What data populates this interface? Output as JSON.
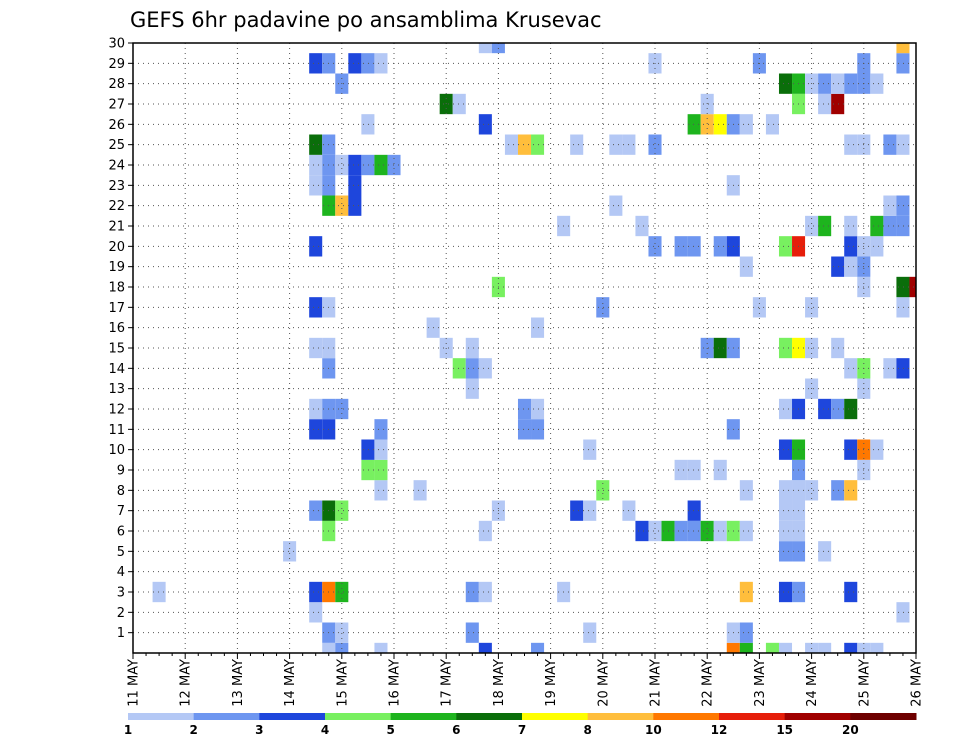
{
  "chart_data": {
    "type": "heatmap",
    "title": "GEFS 6hr padavine po ansamblima Krusevac",
    "x_categories": [
      "11 MAY",
      "12 MAY",
      "13 MAY",
      "14 MAY",
      "15 MAY",
      "16 MAY",
      "17 MAY",
      "18 MAY",
      "19 MAY",
      "20 MAY",
      "21 MAY",
      "22 MAY",
      "23 MAY",
      "24 MAY",
      "25 MAY",
      "26 MAY"
    ],
    "x_unit": "6-hour steps from 11 MAY 00Z",
    "xlim": [
      0,
      60
    ],
    "y_tick_labels": [
      "1",
      "2",
      "3",
      "4",
      "5",
      "6",
      "7",
      "8",
      "9",
      "10",
      "11",
      "12",
      "13",
      "14",
      "15",
      "16",
      "17",
      "18",
      "19",
      "20",
      "21",
      "22",
      "23",
      "24",
      "25",
      "26",
      "27",
      "28",
      "29",
      "30"
    ],
    "ylim": [
      0,
      30
    ],
    "grid": true,
    "legend": "colorbar-bottom",
    "colorbar": {
      "tick_labels": [
        "1",
        "2",
        "3",
        "4",
        "5",
        "6",
        "7",
        "8",
        "10",
        "12",
        "15",
        "20"
      ],
      "bins": [
        {
          "from": 1,
          "to": 2,
          "color": "#b4c8f5"
        },
        {
          "from": 2,
          "to": 3,
          "color": "#6e96f0"
        },
        {
          "from": 3,
          "to": 4,
          "color": "#1e46dc"
        },
        {
          "from": 4,
          "to": 5,
          "color": "#78f060"
        },
        {
          "from": 5,
          "to": 6,
          "color": "#1eb41e"
        },
        {
          "from": 6,
          "to": 7,
          "color": "#0a6e0a"
        },
        {
          "from": 7,
          "to": 8,
          "color": "#ffff00"
        },
        {
          "from": 8,
          "to": 10,
          "color": "#ffbe3c"
        },
        {
          "from": 10,
          "to": 12,
          "color": "#ff7800"
        },
        {
          "from": 12,
          "to": 15,
          "color": "#e61e0a"
        },
        {
          "from": 15,
          "to": 20,
          "color": "#a00000"
        },
        {
          "from": 20,
          "to": null,
          "color": "#6e0000"
        }
      ]
    },
    "cells": [
      {
        "x": 27,
        "y": 0,
        "v": 3
      },
      {
        "x": 31,
        "y": 0,
        "v": 2
      },
      {
        "x": 46,
        "y": 0,
        "v": 10
      },
      {
        "x": 47,
        "y": 0,
        "v": 5
      },
      {
        "x": 49,
        "y": 0,
        "v": 4
      },
      {
        "x": 50,
        "y": 0,
        "v": 1
      },
      {
        "x": 52,
        "y": 0,
        "v": 1
      },
      {
        "x": 53,
        "y": 0,
        "v": 1
      },
      {
        "x": 55,
        "y": 0,
        "v": 3
      },
      {
        "x": 56,
        "y": 0,
        "v": 1
      },
      {
        "x": 57,
        "y": 0,
        "v": 1
      },
      {
        "x": 15,
        "y": 0,
        "v": 1
      },
      {
        "x": 16,
        "y": 0,
        "v": 2
      },
      {
        "x": 19,
        "y": 0,
        "v": 1
      },
      {
        "x": 15,
        "y": 1,
        "v": 2
      },
      {
        "x": 16,
        "y": 1,
        "v": 1
      },
      {
        "x": 26,
        "y": 1,
        "v": 2
      },
      {
        "x": 35,
        "y": 1,
        "v": 1
      },
      {
        "x": 46,
        "y": 1,
        "v": 1
      },
      {
        "x": 47,
        "y": 1,
        "v": 2
      },
      {
        "x": 14,
        "y": 2,
        "v": 1
      },
      {
        "x": 59,
        "y": 2,
        "v": 1
      },
      {
        "x": 2,
        "y": 3,
        "v": 1
      },
      {
        "x": 14,
        "y": 3,
        "v": 3
      },
      {
        "x": 15,
        "y": 3,
        "v": 10
      },
      {
        "x": 16,
        "y": 3,
        "v": 5
      },
      {
        "x": 26,
        "y": 3,
        "v": 2
      },
      {
        "x": 27,
        "y": 3,
        "v": 1
      },
      {
        "x": 33,
        "y": 3,
        "v": 1
      },
      {
        "x": 47,
        "y": 3,
        "v": 8
      },
      {
        "x": 50,
        "y": 3,
        "v": 3
      },
      {
        "x": 51,
        "y": 3,
        "v": 2
      },
      {
        "x": 55,
        "y": 3,
        "v": 3
      },
      {
        "x": 12,
        "y": 5,
        "v": 1
      },
      {
        "x": 50,
        "y": 5,
        "v": 2
      },
      {
        "x": 51,
        "y": 5,
        "v": 2
      },
      {
        "x": 53,
        "y": 5,
        "v": 1
      },
      {
        "x": 15,
        "y": 6,
        "v": 4
      },
      {
        "x": 27,
        "y": 6,
        "v": 1
      },
      {
        "x": 39,
        "y": 6,
        "v": 3
      },
      {
        "x": 40,
        "y": 6,
        "v": 1
      },
      {
        "x": 41,
        "y": 6,
        "v": 5
      },
      {
        "x": 42,
        "y": 6,
        "v": 2
      },
      {
        "x": 43,
        "y": 6,
        "v": 2
      },
      {
        "x": 44,
        "y": 6,
        "v": 5
      },
      {
        "x": 45,
        "y": 6,
        "v": 1
      },
      {
        "x": 46,
        "y": 6,
        "v": 4
      },
      {
        "x": 47,
        "y": 6,
        "v": 1
      },
      {
        "x": 50,
        "y": 6,
        "v": 1
      },
      {
        "x": 51,
        "y": 6,
        "v": 1
      },
      {
        "x": 14,
        "y": 7,
        "v": 2
      },
      {
        "x": 15,
        "y": 7,
        "v": 6
      },
      {
        "x": 16,
        "y": 7,
        "v": 4
      },
      {
        "x": 28,
        "y": 7,
        "v": 1
      },
      {
        "x": 34,
        "y": 7,
        "v": 3
      },
      {
        "x": 35,
        "y": 7,
        "v": 1
      },
      {
        "x": 38,
        "y": 7,
        "v": 1
      },
      {
        "x": 43,
        "y": 7,
        "v": 3
      },
      {
        "x": 50,
        "y": 7,
        "v": 1
      },
      {
        "x": 51,
        "y": 7,
        "v": 1
      },
      {
        "x": 19,
        "y": 8,
        "v": 1
      },
      {
        "x": 22,
        "y": 8,
        "v": 1
      },
      {
        "x": 36,
        "y": 8,
        "v": 4
      },
      {
        "x": 47,
        "y": 8,
        "v": 1
      },
      {
        "x": 50,
        "y": 8,
        "v": 1
      },
      {
        "x": 51,
        "y": 8,
        "v": 1
      },
      {
        "x": 52,
        "y": 8,
        "v": 1
      },
      {
        "x": 54,
        "y": 8,
        "v": 2
      },
      {
        "x": 55,
        "y": 8,
        "v": 8
      },
      {
        "x": 18,
        "y": 9,
        "v": 4
      },
      {
        "x": 19,
        "y": 9,
        "v": 4
      },
      {
        "x": 42,
        "y": 9,
        "v": 1
      },
      {
        "x": 43,
        "y": 9,
        "v": 1
      },
      {
        "x": 45,
        "y": 9,
        "v": 1
      },
      {
        "x": 51,
        "y": 9,
        "v": 2
      },
      {
        "x": 56,
        "y": 9,
        "v": 1
      },
      {
        "x": 18,
        "y": 10,
        "v": 3
      },
      {
        "x": 19,
        "y": 10,
        "v": 1
      },
      {
        "x": 35,
        "y": 10,
        "v": 1
      },
      {
        "x": 50,
        "y": 10,
        "v": 3
      },
      {
        "x": 51,
        "y": 10,
        "v": 5
      },
      {
        "x": 55,
        "y": 10,
        "v": 3
      },
      {
        "x": 56,
        "y": 10,
        "v": 10
      },
      {
        "x": 57,
        "y": 10,
        "v": 1
      },
      {
        "x": 14,
        "y": 11,
        "v": 3
      },
      {
        "x": 15,
        "y": 11,
        "v": 3
      },
      {
        "x": 19,
        "y": 11,
        "v": 2
      },
      {
        "x": 30,
        "y": 11,
        "v": 2
      },
      {
        "x": 31,
        "y": 11,
        "v": 2
      },
      {
        "x": 46,
        "y": 11,
        "v": 2
      },
      {
        "x": 14,
        "y": 12,
        "v": 1
      },
      {
        "x": 15,
        "y": 12,
        "v": 2
      },
      {
        "x": 16,
        "y": 12,
        "v": 2
      },
      {
        "x": 30,
        "y": 12,
        "v": 2
      },
      {
        "x": 31,
        "y": 12,
        "v": 1
      },
      {
        "x": 50,
        "y": 12,
        "v": 1
      },
      {
        "x": 51,
        "y": 12,
        "v": 3
      },
      {
        "x": 53,
        "y": 12,
        "v": 3
      },
      {
        "x": 54,
        "y": 12,
        "v": 2
      },
      {
        "x": 55,
        "y": 12,
        "v": 6
      },
      {
        "x": 26,
        "y": 13,
        "v": 1
      },
      {
        "x": 52,
        "y": 13,
        "v": 1
      },
      {
        "x": 56,
        "y": 13,
        "v": 1
      },
      {
        "x": 15,
        "y": 14,
        "v": 2
      },
      {
        "x": 25,
        "y": 14,
        "v": 4
      },
      {
        "x": 26,
        "y": 14,
        "v": 2
      },
      {
        "x": 27,
        "y": 14,
        "v": 1
      },
      {
        "x": 55,
        "y": 14,
        "v": 1
      },
      {
        "x": 56,
        "y": 14,
        "v": 4
      },
      {
        "x": 58,
        "y": 14,
        "v": 1
      },
      {
        "x": 59,
        "y": 14,
        "v": 3
      },
      {
        "x": 14,
        "y": 15,
        "v": 1
      },
      {
        "x": 15,
        "y": 15,
        "v": 1
      },
      {
        "x": 24,
        "y": 15,
        "v": 1
      },
      {
        "x": 26,
        "y": 15,
        "v": 1
      },
      {
        "x": 44,
        "y": 15,
        "v": 2
      },
      {
        "x": 45,
        "y": 15,
        "v": 6
      },
      {
        "x": 46,
        "y": 15,
        "v": 2
      },
      {
        "x": 50,
        "y": 15,
        "v": 4
      },
      {
        "x": 51,
        "y": 15,
        "v": 7
      },
      {
        "x": 52,
        "y": 15,
        "v": 1
      },
      {
        "x": 54,
        "y": 15,
        "v": 1
      },
      {
        "x": 23,
        "y": 16,
        "v": 1
      },
      {
        "x": 31,
        "y": 16,
        "v": 1
      },
      {
        "x": 14,
        "y": 17,
        "v": 3
      },
      {
        "x": 15,
        "y": 17,
        "v": 1
      },
      {
        "x": 36,
        "y": 17,
        "v": 2
      },
      {
        "x": 48,
        "y": 17,
        "v": 1
      },
      {
        "x": 52,
        "y": 17,
        "v": 1
      },
      {
        "x": 59,
        "y": 17,
        "v": 1
      },
      {
        "x": 28,
        "y": 18,
        "v": 4
      },
      {
        "x": 56,
        "y": 18,
        "v": 1
      },
      {
        "x": 59,
        "y": 18,
        "v": 6
      },
      {
        "x": 60,
        "y": 18,
        "v": 15
      },
      {
        "x": 47,
        "y": 19,
        "v": 1
      },
      {
        "x": 54,
        "y": 19,
        "v": 3
      },
      {
        "x": 55,
        "y": 19,
        "v": 1
      },
      {
        "x": 56,
        "y": 19,
        "v": 2
      },
      {
        "x": 14,
        "y": 20,
        "v": 3
      },
      {
        "x": 40,
        "y": 20,
        "v": 2
      },
      {
        "x": 42,
        "y": 20,
        "v": 2
      },
      {
        "x": 43,
        "y": 20,
        "v": 2
      },
      {
        "x": 45,
        "y": 20,
        "v": 2
      },
      {
        "x": 46,
        "y": 20,
        "v": 3
      },
      {
        "x": 50,
        "y": 20,
        "v": 4
      },
      {
        "x": 51,
        "y": 20,
        "v": 12
      },
      {
        "x": 55,
        "y": 20,
        "v": 3
      },
      {
        "x": 56,
        "y": 20,
        "v": 1
      },
      {
        "x": 57,
        "y": 20,
        "v": 1
      },
      {
        "x": 33,
        "y": 21,
        "v": 1
      },
      {
        "x": 39,
        "y": 21,
        "v": 1
      },
      {
        "x": 52,
        "y": 21,
        "v": 1
      },
      {
        "x": 53,
        "y": 21,
        "v": 5
      },
      {
        "x": 55,
        "y": 21,
        "v": 1
      },
      {
        "x": 57,
        "y": 21,
        "v": 5
      },
      {
        "x": 58,
        "y": 21,
        "v": 2
      },
      {
        "x": 59,
        "y": 21,
        "v": 2
      },
      {
        "x": 15,
        "y": 22,
        "v": 5
      },
      {
        "x": 16,
        "y": 22,
        "v": 8
      },
      {
        "x": 17,
        "y": 22,
        "v": 3
      },
      {
        "x": 37,
        "y": 22,
        "v": 1
      },
      {
        "x": 58,
        "y": 22,
        "v": 1
      },
      {
        "x": 59,
        "y": 22,
        "v": 2
      },
      {
        "x": 14,
        "y": 23,
        "v": 1
      },
      {
        "x": 15,
        "y": 23,
        "v": 2
      },
      {
        "x": 17,
        "y": 23,
        "v": 3
      },
      {
        "x": 46,
        "y": 23,
        "v": 1
      },
      {
        "x": 14,
        "y": 24,
        "v": 1
      },
      {
        "x": 15,
        "y": 24,
        "v": 2
      },
      {
        "x": 16,
        "y": 24,
        "v": 1
      },
      {
        "x": 17,
        "y": 24,
        "v": 3
      },
      {
        "x": 18,
        "y": 24,
        "v": 2
      },
      {
        "x": 19,
        "y": 24,
        "v": 5
      },
      {
        "x": 20,
        "y": 24,
        "v": 2
      },
      {
        "x": 14,
        "y": 25,
        "v": 6
      },
      {
        "x": 15,
        "y": 25,
        "v": 2
      },
      {
        "x": 29,
        "y": 25,
        "v": 1
      },
      {
        "x": 30,
        "y": 25,
        "v": 8
      },
      {
        "x": 31,
        "y": 25,
        "v": 4
      },
      {
        "x": 34,
        "y": 25,
        "v": 1
      },
      {
        "x": 37,
        "y": 25,
        "v": 1
      },
      {
        "x": 38,
        "y": 25,
        "v": 1
      },
      {
        "x": 40,
        "y": 25,
        "v": 2
      },
      {
        "x": 55,
        "y": 25,
        "v": 1
      },
      {
        "x": 56,
        "y": 25,
        "v": 1
      },
      {
        "x": 58,
        "y": 25,
        "v": 2
      },
      {
        "x": 59,
        "y": 25,
        "v": 1
      },
      {
        "x": 18,
        "y": 26,
        "v": 1
      },
      {
        "x": 27,
        "y": 26,
        "v": 3
      },
      {
        "x": 43,
        "y": 26,
        "v": 5
      },
      {
        "x": 44,
        "y": 26,
        "v": 8
      },
      {
        "x": 45,
        "y": 26,
        "v": 7
      },
      {
        "x": 46,
        "y": 26,
        "v": 2
      },
      {
        "x": 47,
        "y": 26,
        "v": 1
      },
      {
        "x": 49,
        "y": 26,
        "v": 1
      },
      {
        "x": 24,
        "y": 27,
        "v": 6
      },
      {
        "x": 25,
        "y": 27,
        "v": 1
      },
      {
        "x": 44,
        "y": 27,
        "v": 1
      },
      {
        "x": 51,
        "y": 27,
        "v": 4
      },
      {
        "x": 53,
        "y": 27,
        "v": 1
      },
      {
        "x": 54,
        "y": 27,
        "v": 15
      },
      {
        "x": 16,
        "y": 28,
        "v": 2
      },
      {
        "x": 50,
        "y": 28,
        "v": 6
      },
      {
        "x": 51,
        "y": 28,
        "v": 5
      },
      {
        "x": 52,
        "y": 28,
        "v": 1
      },
      {
        "x": 53,
        "y": 28,
        "v": 2
      },
      {
        "x": 54,
        "y": 28,
        "v": 1
      },
      {
        "x": 55,
        "y": 28,
        "v": 2
      },
      {
        "x": 56,
        "y": 28,
        "v": 2
      },
      {
        "x": 57,
        "y": 28,
        "v": 1
      },
      {
        "x": 14,
        "y": 29,
        "v": 3
      },
      {
        "x": 15,
        "y": 29,
        "v": 2
      },
      {
        "x": 17,
        "y": 29,
        "v": 3
      },
      {
        "x": 18,
        "y": 29,
        "v": 2
      },
      {
        "x": 19,
        "y": 29,
        "v": 1
      },
      {
        "x": 40,
        "y": 29,
        "v": 1
      },
      {
        "x": 48,
        "y": 29,
        "v": 2
      },
      {
        "x": 56,
        "y": 29,
        "v": 2
      },
      {
        "x": 59,
        "y": 29,
        "v": 2
      },
      {
        "x": 27,
        "y": 30,
        "v": 1
      },
      {
        "x": 28,
        "y": 30,
        "v": 2
      },
      {
        "x": 59,
        "y": 30,
        "v": 8
      }
    ]
  }
}
